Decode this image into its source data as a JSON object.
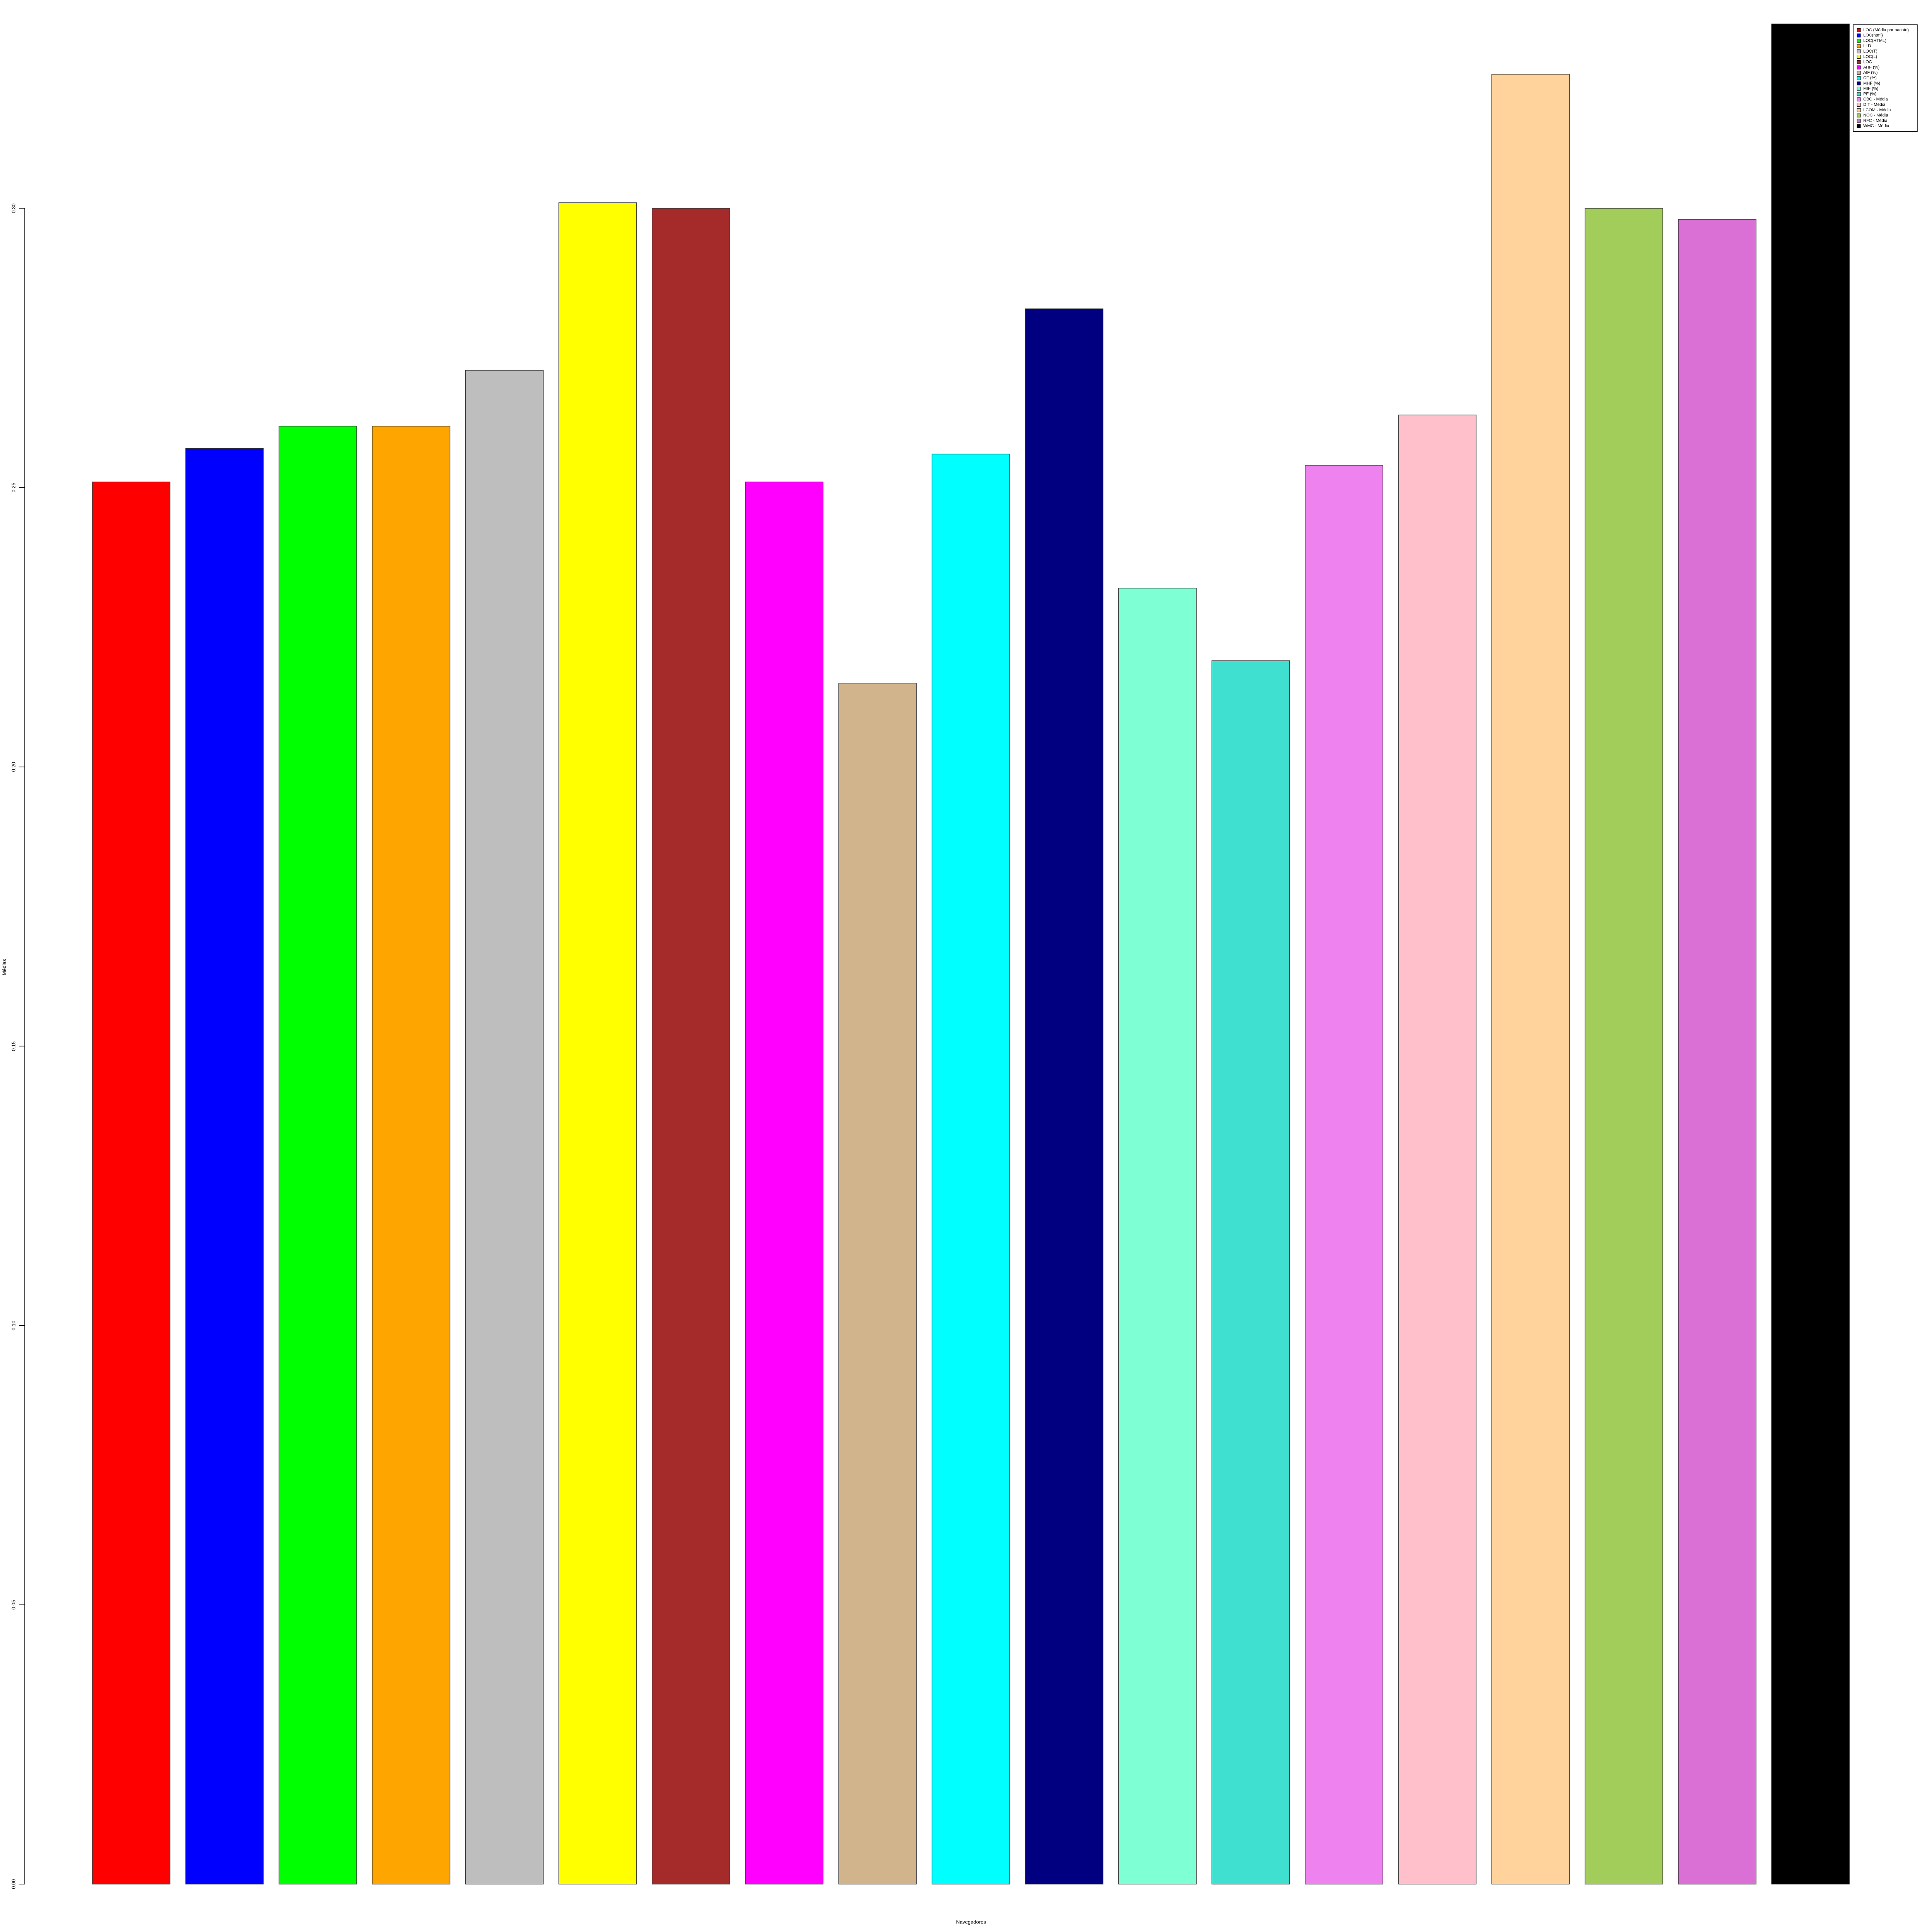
{
  "chart_data": {
    "type": "bar",
    "x_label": "Navegadores",
    "y_label": "Médias",
    "categories": [
      "LOC (Média por pacote)",
      "LOC(html)",
      "LOC(HTML)",
      "LLD",
      "LOC(T)",
      "LOC(L)",
      "LOC",
      "AHF (%)",
      "AIF (%)",
      "CF (%)",
      "MHF (%)",
      "MIF (%)",
      "PF (%)",
      "CBO - Média",
      "DIT - Média",
      "LCOM - Média",
      "NOC - Média",
      "RFC - Média",
      "WMC - Média"
    ],
    "values": [
      0.251,
      0.257,
      0.261,
      0.261,
      0.271,
      0.301,
      0.3,
      0.251,
      0.215,
      0.256,
      0.282,
      0.232,
      0.219,
      0.254,
      0.263,
      0.324,
      0.3,
      0.298,
      0.333
    ],
    "colors": [
      "#ff0000",
      "#0000ff",
      "#00ff00",
      "#ffa500",
      "#bebebe",
      "#ffff00",
      "#a52a2a",
      "#ff00ff",
      "#d2b48c",
      "#00ffff",
      "#000080",
      "#7fffd4",
      "#40e0d0",
      "#ee82ee",
      "#ffc0cb",
      "#ffd39b",
      "#a2cd5a",
      "#da70d6",
      "#000000"
    ],
    "ylim": [
      0,
      0.335
    ],
    "yticks": [
      {
        "value": 0,
        "label": "0.00"
      },
      0.05,
      {
        "value": 0.1,
        "label": "0.10"
      },
      0.15,
      {
        "value": 0.2,
        "label": "0.20"
      },
      0.25,
      {
        "value": 0.3,
        "label": "0.30"
      }
    ],
    "legend": "top-right"
  }
}
